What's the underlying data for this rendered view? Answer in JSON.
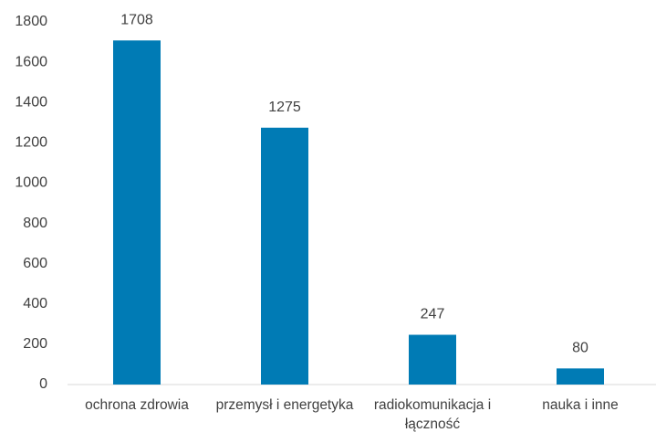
{
  "chart_data": {
    "type": "bar",
    "categories": [
      "ochrona zdrowia",
      "przemysł i energetyka",
      "radiokomunikacja i łączność",
      "nauka i inne"
    ],
    "values": [
      1708,
      1275,
      247,
      80
    ],
    "color": "#007bb5",
    "ylim": [
      0,
      1800
    ],
    "yticks": [
      0,
      200,
      400,
      600,
      800,
      1000,
      1200,
      1400,
      1600,
      1800
    ],
    "grid": false
  }
}
